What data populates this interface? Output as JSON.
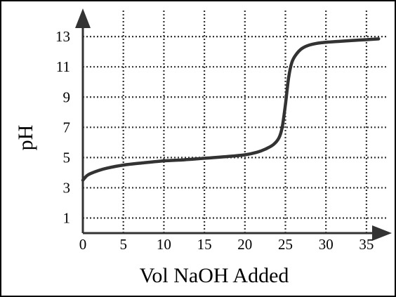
{
  "chart_data": {
    "type": "line",
    "title": "",
    "xlabel": "Vol NaOH Added",
    "ylabel": "pH",
    "xlim": [
      0,
      37
    ],
    "ylim": [
      0,
      14.4
    ],
    "x_ticks": [
      0,
      5,
      10,
      15,
      20,
      25,
      30,
      35
    ],
    "x_tick_labels": [
      "0",
      "5",
      "10",
      "15",
      "20",
      "25",
      "30",
      "35"
    ],
    "y_ticks": [
      1,
      3,
      5,
      7,
      9,
      11,
      13
    ],
    "y_tick_labels": [
      "1",
      "3",
      "5",
      "7",
      "9",
      "11",
      "13"
    ],
    "grid": true,
    "grid_style": "dotted",
    "legend": "none",
    "series": [
      {
        "x": [
          0,
          0.5,
          1,
          2,
          3,
          5,
          7.5,
          10,
          12.5,
          15,
          17.5,
          20,
          21.5,
          22.5,
          23.5,
          24.2,
          24.6,
          25,
          25.4,
          25.8,
          26.3,
          27,
          28,
          29.5,
          32,
          35,
          36.5
        ],
        "y": [
          3.5,
          3.8,
          3.95,
          4.15,
          4.3,
          4.5,
          4.65,
          4.78,
          4.85,
          4.95,
          5.05,
          5.18,
          5.35,
          5.55,
          5.85,
          6.3,
          7.0,
          8.5,
          10.3,
          11.3,
          11.8,
          12.2,
          12.45,
          12.6,
          12.7,
          12.8,
          12.85
        ]
      }
    ],
    "colors": {
      "curve": "#333333",
      "axis": "#333333",
      "grid": "#333333",
      "text": "#000000"
    }
  }
}
